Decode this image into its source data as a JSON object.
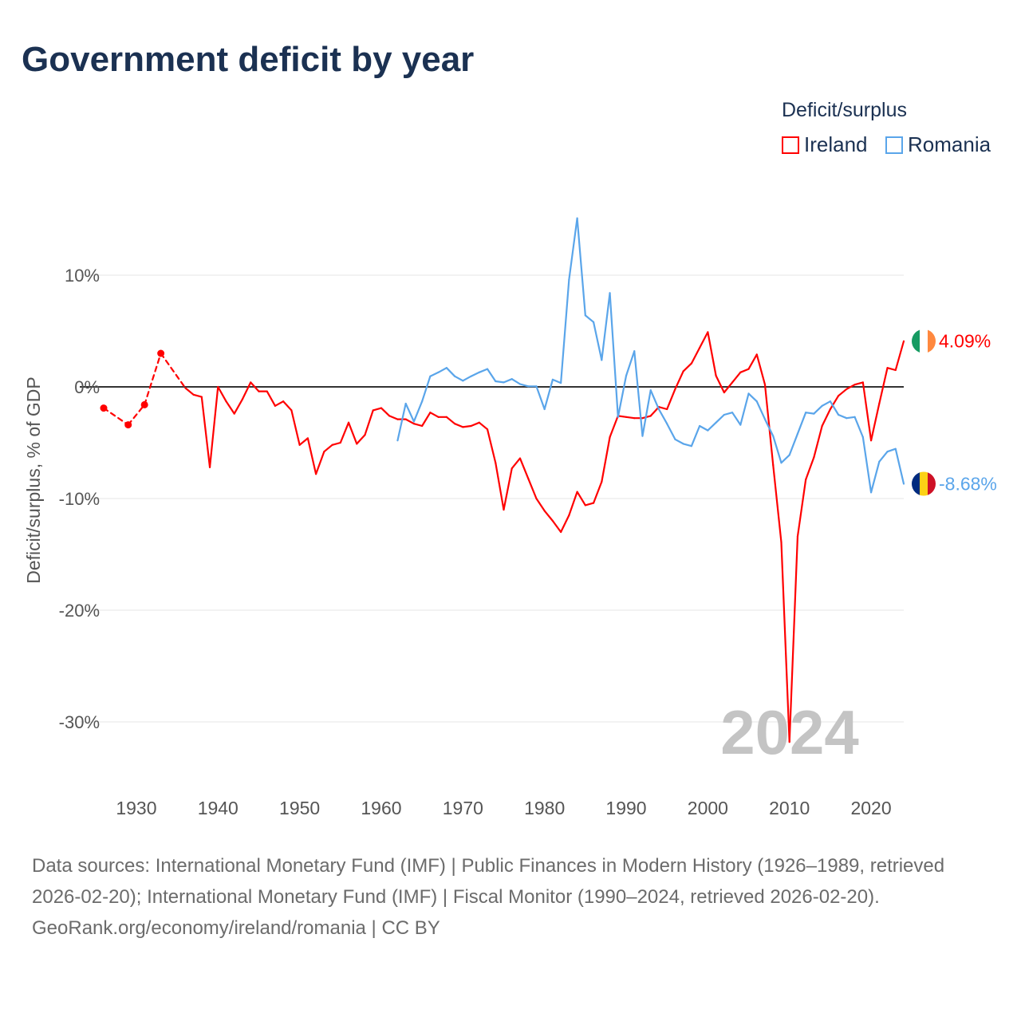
{
  "title": "Government deficit by year",
  "legend": {
    "title": "Deficit/surplus",
    "items": [
      {
        "label": "Ireland",
        "color": "#ff0000"
      },
      {
        "label": "Romania",
        "color": "#5aa5ea"
      }
    ]
  },
  "footer": {
    "sources": "Data sources: International Monetary Fund (IMF) | Public Finances in Modern History (1926–1989, retrieved 2026-02-20); International Monetary Fund (IMF) | Fiscal Monitor (1990–2024, retrieved 2026-02-20).",
    "link": "GeoRank.org/economy/ireland/romania | CC BY"
  },
  "chart_data": {
    "type": "line",
    "title": "Government deficit by year",
    "xlabel": "",
    "ylabel": "Deficit/surplus, % of GDP",
    "xlim": [
      1926,
      2024
    ],
    "ylim": [
      -35,
      17
    ],
    "x_ticks": [
      "1930",
      "1940",
      "1950",
      "1960",
      "1970",
      "1980",
      "1990",
      "2000",
      "2010",
      "2020"
    ],
    "y_ticks": [
      {
        "value": 10,
        "label": "10%"
      },
      {
        "value": 0,
        "label": "0%"
      },
      {
        "value": -10,
        "label": "-10%"
      },
      {
        "value": -20,
        "label": "-20%"
      },
      {
        "value": -30,
        "label": "-30%"
      }
    ],
    "watermark": "2024",
    "series": [
      {
        "name": "Ireland",
        "color": "#ff0000",
        "end_label": "4.09%",
        "flag": [
          "#169b62",
          "#ffffff",
          "#ff883e"
        ],
        "x": [
          1926,
          1929,
          1931,
          1933,
          1936,
          1937,
          1938,
          1939,
          1940,
          1941,
          1942,
          1943,
          1944,
          1945,
          1946,
          1947,
          1948,
          1949,
          1950,
          1951,
          1952,
          1953,
          1954,
          1955,
          1956,
          1957,
          1958,
          1959,
          1960,
          1961,
          1962,
          1963,
          1964,
          1965,
          1966,
          1967,
          1968,
          1969,
          1970,
          1971,
          1972,
          1973,
          1974,
          1975,
          1976,
          1977,
          1978,
          1979,
          1980,
          1981,
          1982,
          1983,
          1984,
          1985,
          1986,
          1987,
          1988,
          1989,
          1990,
          1991,
          1992,
          1993,
          1994,
          1995,
          1996,
          1997,
          1998,
          1999,
          2000,
          2001,
          2002,
          2003,
          2004,
          2005,
          2006,
          2007,
          2008,
          2009,
          2010,
          2011,
          2012,
          2013,
          2014,
          2015,
          2016,
          2017,
          2018,
          2019,
          2020,
          2021,
          2022,
          2023,
          2024
        ],
        "values": [
          -1.9,
          -3.4,
          -1.6,
          3.0,
          -0.1,
          -0.7,
          -0.9,
          -7.2,
          0.0,
          -1.3,
          -2.4,
          -1.1,
          0.4,
          -0.4,
          -0.4,
          -1.7,
          -1.3,
          -2.1,
          -5.2,
          -4.6,
          -7.8,
          -5.8,
          -5.2,
          -5.0,
          -3.2,
          -5.1,
          -4.3,
          -2.1,
          -1.9,
          -2.6,
          -2.9,
          -2.9,
          -3.3,
          -3.5,
          -2.3,
          -2.7,
          -2.7,
          -3.3,
          -3.6,
          -3.5,
          -3.2,
          -3.8,
          -6.8,
          -11.0,
          -7.3,
          -6.4,
          -8.2,
          -10.0,
          -11.1,
          -12.0,
          -13.0,
          -11.5,
          -9.4,
          -10.6,
          -10.4,
          -8.5,
          -4.5,
          -2.6,
          -2.7,
          -2.8,
          -2.8,
          -2.6,
          -1.8,
          -2.0,
          -0.2,
          1.4,
          2.1,
          3.5,
          4.9,
          1.0,
          -0.5,
          0.4,
          1.3,
          1.6,
          2.9,
          0.2,
          -7.0,
          -13.9,
          -31.8,
          -13.4,
          -8.3,
          -6.3,
          -3.5,
          -2.0,
          -0.8,
          -0.2,
          0.2,
          0.4,
          -4.8,
          -1.5,
          1.7,
          1.5,
          4.09
        ]
      },
      {
        "name": "Romania",
        "color": "#5aa5ea",
        "end_label": "-8.68%",
        "flag": [
          "#002b7f",
          "#fcd116",
          "#ce1126"
        ],
        "x": [
          1962,
          1963,
          1964,
          1965,
          1966,
          1967,
          1968,
          1969,
          1970,
          1971,
          1972,
          1973,
          1974,
          1975,
          1976,
          1977,
          1978,
          1979,
          1980,
          1981,
          1982,
          1983,
          1984,
          1985,
          1986,
          1987,
          1988,
          1989,
          1990,
          1991,
          1992,
          1993,
          1994,
          1995,
          1996,
          1997,
          1998,
          1999,
          2000,
          2001,
          2002,
          2003,
          2004,
          2005,
          2006,
          2007,
          2008,
          2009,
          2010,
          2011,
          2012,
          2013,
          2014,
          2015,
          2016,
          2017,
          2018,
          2019,
          2020,
          2021,
          2022,
          2023,
          2024
        ],
        "values": [
          -4.8,
          -1.5,
          -3.1,
          -1.3,
          0.95,
          1.3,
          1.7,
          0.95,
          0.55,
          0.95,
          1.3,
          1.6,
          0.5,
          0.4,
          0.7,
          0.25,
          0.05,
          0.05,
          -2.0,
          0.65,
          0.35,
          9.6,
          15.1,
          6.4,
          5.8,
          2.4,
          8.4,
          -2.7,
          1.0,
          3.2,
          -4.4,
          -0.3,
          -2.0,
          -3.3,
          -4.7,
          -5.1,
          -5.3,
          -3.5,
          -3.9,
          -3.2,
          -2.5,
          -2.3,
          -3.4,
          -0.6,
          -1.3,
          -2.9,
          -4.4,
          -6.8,
          -6.1,
          -4.2,
          -2.3,
          -2.4,
          -1.7,
          -1.3,
          -2.5,
          -2.8,
          -2.7,
          -4.5,
          -9.45,
          -6.7,
          -5.8,
          -5.55,
          -8.68
        ]
      }
    ]
  }
}
